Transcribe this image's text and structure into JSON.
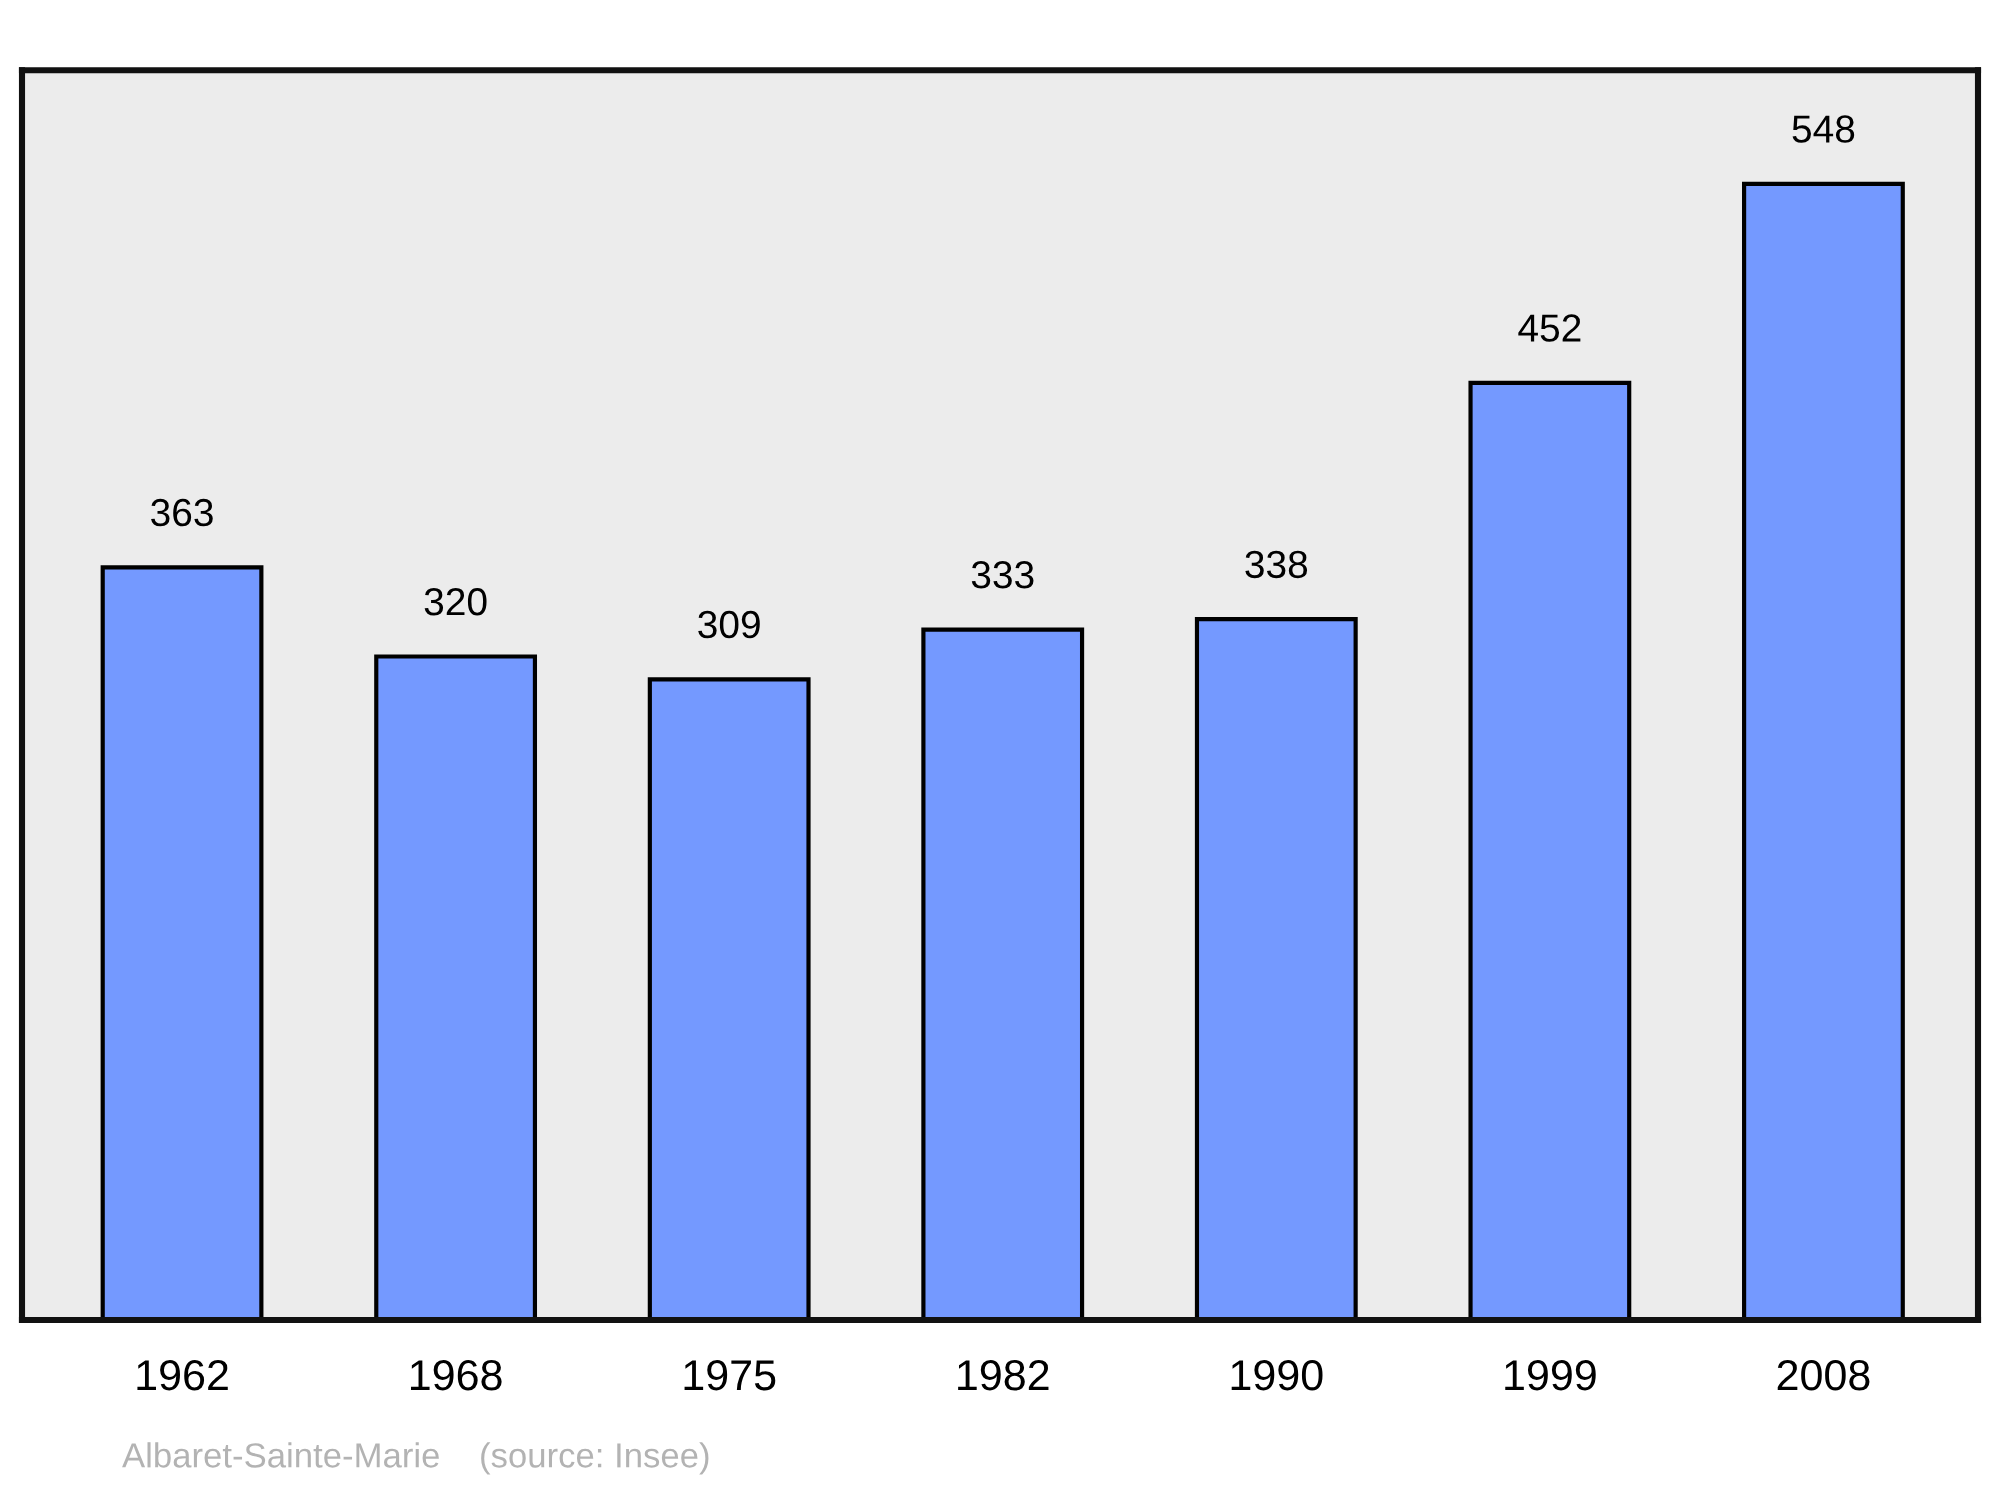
{
  "chart_data": {
    "type": "bar",
    "categories": [
      "1962",
      "1968",
      "1975",
      "1982",
      "1990",
      "1999",
      "2008"
    ],
    "values": [
      363,
      320,
      309,
      333,
      338,
      452,
      548
    ],
    "color": "#7499ff",
    "data_labels": true,
    "tick_labels": "x",
    "grid": false,
    "legend": false,
    "annotations": [
      "Albaret-Sainte-Marie    (source: Insee)"
    ]
  }
}
